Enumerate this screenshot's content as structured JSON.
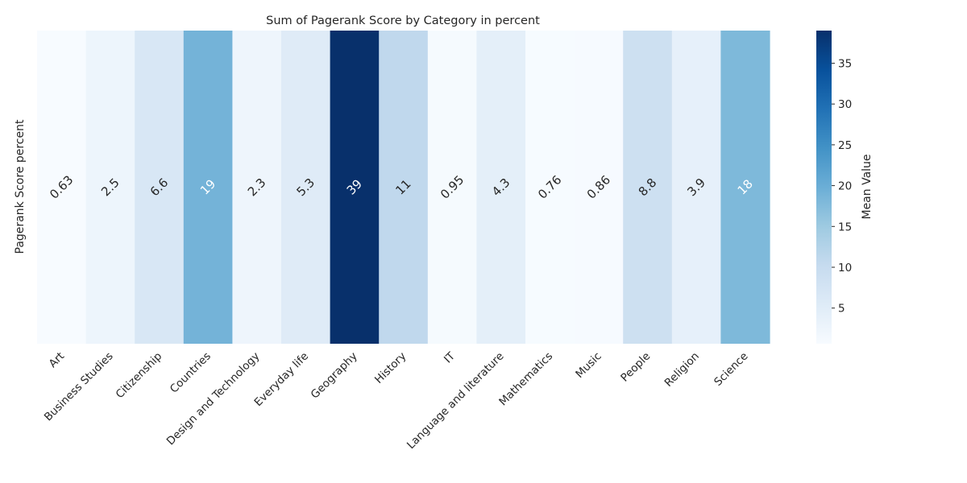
{
  "chart_data": {
    "type": "heatmap",
    "title": "Sum of Pagerank Score by Category in percent",
    "ylabel": "Pagerank Score percent",
    "xlabel": "",
    "colorbar_label": "Mean Value",
    "colormap": "Blues",
    "color_range": [
      0.63,
      39
    ],
    "colorbar_ticks": [
      5,
      10,
      15,
      20,
      25,
      30,
      35
    ],
    "categories": [
      "Art",
      "Business Studies",
      "Citizenship",
      "Countries",
      "Design and Technology",
      "Everyday life",
      "Geography",
      "History",
      "IT",
      "Language and literature",
      "Mathematics",
      "Music",
      "People",
      "Religion",
      "Science"
    ],
    "values": [
      0.63,
      2.5,
      6.6,
      19,
      2.3,
      5.3,
      39,
      11,
      0.95,
      4.3,
      0.76,
      0.86,
      8.8,
      3.9,
      18
    ],
    "value_labels": [
      "0.63",
      "2.5",
      "6.6",
      "19",
      "2.3",
      "5.3",
      "39",
      "11",
      "0.95",
      "4.3",
      "0.76",
      "0.86",
      "8.8",
      "3.9",
      "18"
    ],
    "grid": false
  }
}
